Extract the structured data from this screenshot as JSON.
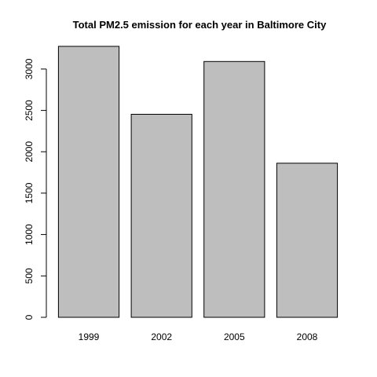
{
  "chart_data": {
    "type": "bar",
    "title": "Total PM2.5 emission for each year in Baltimore City",
    "xlabel": "",
    "ylabel": "",
    "categories": [
      "1999",
      "2002",
      "2005",
      "2008"
    ],
    "values": [
      3274,
      2453,
      3091,
      1862
    ],
    "ylim": [
      0,
      3274
    ],
    "yticks": [
      0,
      500,
      1000,
      1500,
      2000,
      2500,
      3000
    ],
    "grid": false,
    "legend": "none",
    "bar_color": "#bebebe",
    "bar_outline": "#000000"
  }
}
